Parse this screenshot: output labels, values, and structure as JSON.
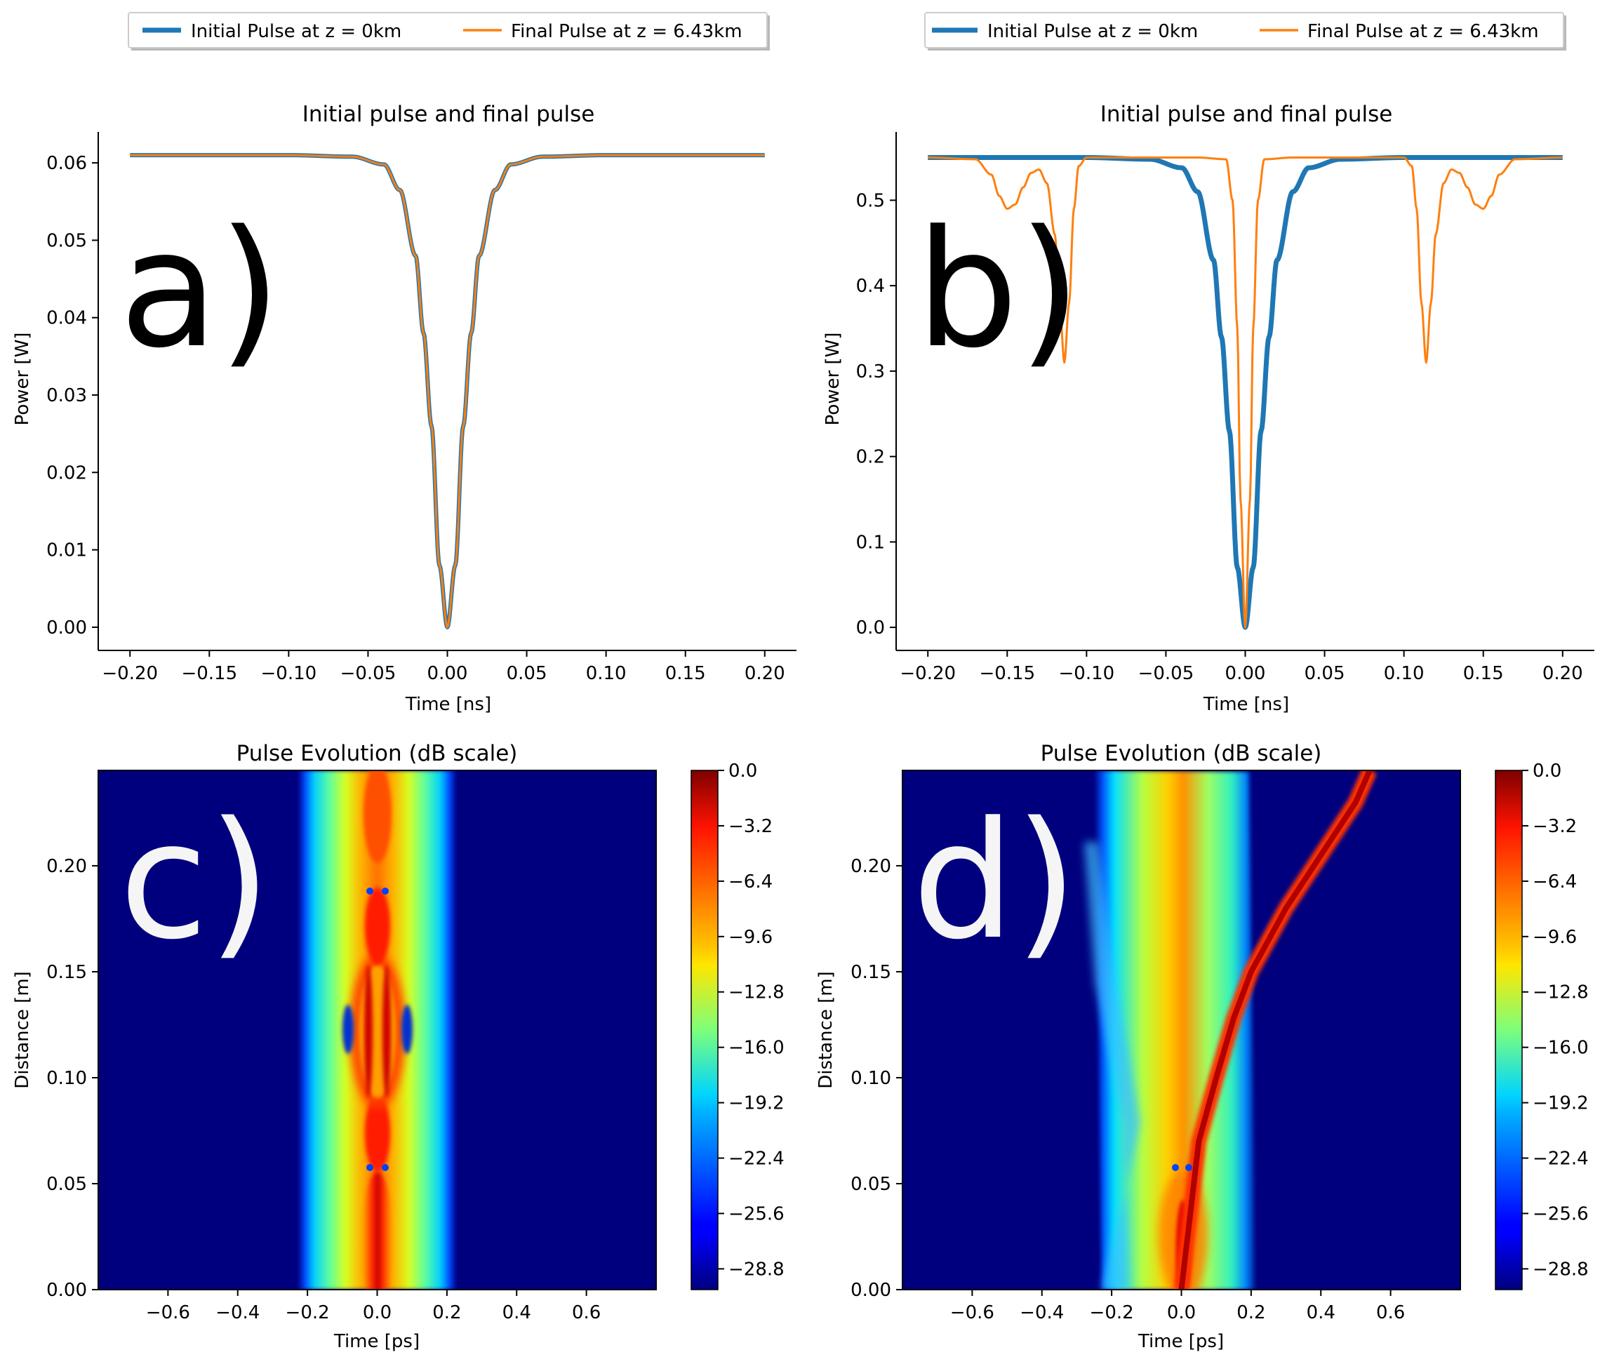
{
  "chart_data": [
    {
      "id": "a",
      "type": "line",
      "panel_label": "a)",
      "title": "Initial pulse and final pulse",
      "xlabel": "Time [ns]",
      "ylabel": "Power [W]",
      "xlim": [
        -0.22,
        0.22
      ],
      "ylim": [
        -0.003,
        0.064
      ],
      "xticks": [
        -0.2,
        -0.15,
        -0.1,
        -0.05,
        0.0,
        0.05,
        0.1,
        0.15,
        0.2
      ],
      "xtick_labels": [
        "−0.20",
        "−0.15",
        "−0.10",
        "−0.05",
        "0.00",
        "0.05",
        "0.10",
        "0.15",
        "0.20"
      ],
      "yticks": [
        0.0,
        0.01,
        0.02,
        0.03,
        0.04,
        0.05,
        0.06
      ],
      "ytick_labels": [
        "0.00",
        "0.01",
        "0.02",
        "0.03",
        "0.04",
        "0.05",
        "0.06"
      ],
      "grid": false,
      "legend": "top-center (outside)",
      "series": [
        {
          "name": "Initial Pulse at z = 0km",
          "color": "#1f77b4",
          "x": [
            -0.2,
            -0.1,
            -0.06,
            -0.04,
            -0.03,
            -0.02,
            -0.015,
            -0.01,
            -0.005,
            0.0,
            0.005,
            0.01,
            0.015,
            0.02,
            0.03,
            0.04,
            0.06,
            0.1,
            0.2
          ],
          "y": [
            0.061,
            0.061,
            0.0608,
            0.0598,
            0.0565,
            0.048,
            0.038,
            0.026,
            0.008,
            0.0,
            0.008,
            0.026,
            0.038,
            0.048,
            0.0565,
            0.0598,
            0.0608,
            0.061,
            0.061
          ]
        },
        {
          "name": "Final Pulse at z = 6.43km",
          "color": "#ff7f0e",
          "x": [
            -0.2,
            -0.1,
            -0.06,
            -0.04,
            -0.03,
            -0.02,
            -0.015,
            -0.01,
            -0.005,
            0.0,
            0.005,
            0.01,
            0.015,
            0.02,
            0.03,
            0.04,
            0.06,
            0.1,
            0.2
          ],
          "y": [
            0.061,
            0.061,
            0.0608,
            0.0598,
            0.0565,
            0.048,
            0.038,
            0.026,
            0.008,
            0.0,
            0.008,
            0.026,
            0.038,
            0.048,
            0.0565,
            0.0598,
            0.0608,
            0.061,
            0.061
          ]
        }
      ]
    },
    {
      "id": "b",
      "type": "line",
      "panel_label": "b)",
      "title": "Initial pulse and final pulse",
      "xlabel": "Time [ns]",
      "ylabel": "Power [W]",
      "xlim": [
        -0.22,
        0.22
      ],
      "ylim": [
        -0.027,
        0.58
      ],
      "xticks": [
        -0.2,
        -0.15,
        -0.1,
        -0.05,
        0.0,
        0.05,
        0.1,
        0.15,
        0.2
      ],
      "xtick_labels": [
        "−0.20",
        "−0.15",
        "−0.10",
        "−0.05",
        "0.00",
        "0.05",
        "0.10",
        "0.15",
        "0.20"
      ],
      "yticks": [
        0.0,
        0.1,
        0.2,
        0.3,
        0.4,
        0.5
      ],
      "ytick_labels": [
        "0.0",
        "0.1",
        "0.2",
        "0.3",
        "0.4",
        "0.5"
      ],
      "grid": false,
      "legend": "top-center (outside)",
      "series": [
        {
          "name": "Initial Pulse at z = 0km",
          "color": "#1f77b4",
          "x": [
            -0.2,
            -0.1,
            -0.06,
            -0.04,
            -0.03,
            -0.02,
            -0.015,
            -0.01,
            -0.005,
            0.0,
            0.005,
            0.01,
            0.015,
            0.02,
            0.03,
            0.04,
            0.06,
            0.1,
            0.2
          ],
          "y": [
            0.55,
            0.55,
            0.548,
            0.538,
            0.51,
            0.43,
            0.34,
            0.23,
            0.07,
            0.0,
            0.07,
            0.23,
            0.34,
            0.43,
            0.51,
            0.538,
            0.548,
            0.55,
            0.55
          ]
        },
        {
          "name": "Final Pulse at z = 6.43km",
          "color": "#ff7f0e",
          "x": [
            -0.2,
            -0.17,
            -0.16,
            -0.155,
            -0.15,
            -0.145,
            -0.14,
            -0.135,
            -0.13,
            -0.125,
            -0.12,
            -0.117,
            -0.114,
            -0.111,
            -0.108,
            -0.105,
            -0.1,
            -0.09,
            -0.03,
            -0.012,
            -0.008,
            -0.005,
            -0.003,
            0.0,
            0.003,
            0.005,
            0.008,
            0.012,
            0.03,
            0.09,
            0.1,
            0.105,
            0.108,
            0.111,
            0.114,
            0.117,
            0.12,
            0.125,
            0.13,
            0.135,
            0.14,
            0.145,
            0.15,
            0.155,
            0.16,
            0.17,
            0.2
          ],
          "y": [
            0.55,
            0.548,
            0.53,
            0.505,
            0.49,
            0.495,
            0.515,
            0.532,
            0.536,
            0.52,
            0.46,
            0.38,
            0.31,
            0.38,
            0.49,
            0.54,
            0.55,
            0.55,
            0.55,
            0.548,
            0.5,
            0.35,
            0.15,
            0.0,
            0.15,
            0.35,
            0.5,
            0.548,
            0.55,
            0.55,
            0.55,
            0.54,
            0.49,
            0.38,
            0.31,
            0.38,
            0.46,
            0.52,
            0.536,
            0.532,
            0.515,
            0.495,
            0.49,
            0.505,
            0.53,
            0.548,
            0.55
          ]
        }
      ]
    },
    {
      "id": "c",
      "type": "heatmap",
      "panel_label": "c)",
      "title": "Pulse Evolution (dB scale)",
      "xlabel": "Time [ps]",
      "ylabel": "Distance [m]",
      "xlim": [
        -0.8,
        0.8
      ],
      "ylim": [
        0.0,
        0.245
      ],
      "xticks": [
        -0.6,
        -0.4,
        -0.2,
        0.0,
        0.2,
        0.4,
        0.6
      ],
      "xtick_labels": [
        "−0.6",
        "−0.4",
        "−0.2",
        "0.0",
        "0.2",
        "0.4",
        "0.6"
      ],
      "yticks": [
        0.0,
        0.05,
        0.1,
        0.15,
        0.2
      ],
      "ytick_labels": [
        "0.00",
        "0.05",
        "0.10",
        "0.15",
        "0.20"
      ],
      "colorbar_range_db": [
        -30,
        0
      ],
      "colorbar_ticks": [
        0.0,
        -3.2,
        -6.4,
        -9.6,
        -12.8,
        -16.0,
        -19.2,
        -22.4,
        -25.6,
        -28.8
      ],
      "colorbar_tick_labels": [
        "0.0",
        "−3.2",
        "−6.4",
        "−9.6",
        "−12.8",
        "−16.0",
        "−19.2",
        "−22.4",
        "−25.6",
        "−28.8"
      ],
      "colormap": "jet"
    },
    {
      "id": "d",
      "type": "heatmap",
      "panel_label": "d)",
      "title": "Pulse Evolution (dB scale)",
      "xlabel": "Time [ps]",
      "ylabel": "Distance [m]",
      "xlim": [
        -0.8,
        0.8
      ],
      "ylim": [
        0.0,
        0.245
      ],
      "xticks": [
        -0.6,
        -0.4,
        -0.2,
        0.0,
        0.2,
        0.4,
        0.6
      ],
      "xtick_labels": [
        "−0.6",
        "−0.4",
        "−0.2",
        "0.0",
        "0.2",
        "0.4",
        "0.6"
      ],
      "yticks": [
        0.0,
        0.05,
        0.1,
        0.15,
        0.2
      ],
      "ytick_labels": [
        "0.00",
        "0.05",
        "0.10",
        "0.15",
        "0.20"
      ],
      "colorbar_range_db": [
        -30,
        0
      ],
      "colorbar_ticks": [
        0.0,
        -3.2,
        -6.4,
        -9.6,
        -12.8,
        -16.0,
        -19.2,
        -22.4,
        -25.6,
        -28.8
      ],
      "colorbar_tick_labels": [
        "0.0",
        "−3.2",
        "−6.4",
        "−9.6",
        "−12.8",
        "−16.0",
        "−19.2",
        "−22.4",
        "−25.6",
        "−28.8"
      ],
      "colormap": "jet",
      "soliton_track": {
        "x": [
          0.0,
          0.05,
          0.1,
          0.15,
          0.2,
          0.3,
          0.4,
          0.5,
          0.54
        ],
        "y": [
          0.0,
          0.07,
          0.1,
          0.128,
          0.15,
          0.18,
          0.205,
          0.23,
          0.245
        ]
      }
    }
  ]
}
